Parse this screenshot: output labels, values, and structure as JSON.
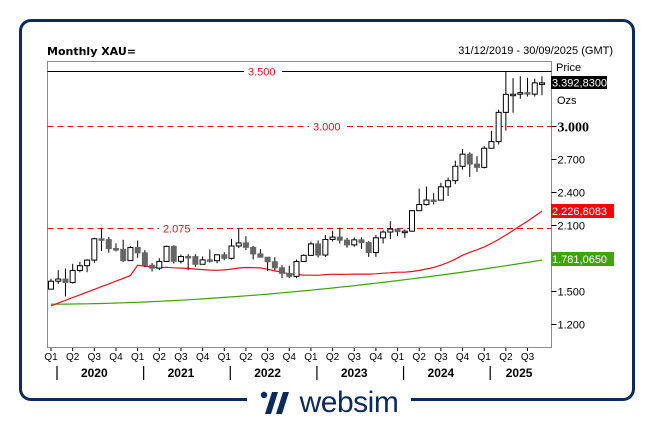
{
  "header": {
    "title": "Monthly XAU=",
    "date_range": "31/12/2019 - 30/09/2025 (GMT)"
  },
  "axis_right": {
    "price_label": "Price",
    "unit_label": "Ozs",
    "last_price": "3.392,8300",
    "ticks": [
      "3.000",
      "2.700",
      "2.400",
      "2.100",
      "1.500",
      "1.200"
    ],
    "ma_red_value": "2.226,8083",
    "ma_green_value": "1.781,0650"
  },
  "levels": [
    {
      "label": "3.500",
      "value": 3500,
      "color": "#000000",
      "style": "solid"
    },
    {
      "label": "3.000",
      "value": 3000,
      "color": "#e0141e",
      "style": "dashed"
    },
    {
      "label": "2.075",
      "value": 2075,
      "color": "#e0141e",
      "style": "dashed"
    }
  ],
  "x_axis": {
    "quarters": [
      "Q1",
      "Q2",
      "Q3",
      "Q4",
      "Q1",
      "Q2",
      "Q3",
      "Q4",
      "Q1",
      "Q2",
      "Q3",
      "Q4",
      "Q1",
      "Q2",
      "Q3",
      "Q4",
      "Q1",
      "Q2",
      "Q3",
      "Q4",
      "Q1",
      "Q2",
      "Q3"
    ],
    "years": [
      "2020",
      "2021",
      "2022",
      "2023",
      "2024",
      "2025"
    ]
  },
  "colors": {
    "frame": "#0d2b5a",
    "ma_red": "#e0141e",
    "ma_green": "#3fa40a",
    "bear_fill": "#666666",
    "last_price_bg": "#000000"
  },
  "branding": {
    "logo_text": "websim"
  },
  "chart_data": {
    "type": "candlestick",
    "title": "Monthly XAU=",
    "subtitle": "31/12/2019 - 30/09/2025 (GMT)",
    "ylabel": "Price (Ozs)",
    "ylim": [
      1100,
      3600
    ],
    "y_ticks": [
      1200,
      1500,
      2100,
      2400,
      2700,
      3000
    ],
    "grid": false,
    "horizontal_lines": [
      3500,
      3000,
      2075
    ],
    "x": [
      "2020-01",
      "2020-02",
      "2020-03",
      "2020-04",
      "2020-05",
      "2020-06",
      "2020-07",
      "2020-08",
      "2020-09",
      "2020-10",
      "2020-11",
      "2020-12",
      "2021-01",
      "2021-02",
      "2021-03",
      "2021-04",
      "2021-05",
      "2021-06",
      "2021-07",
      "2021-08",
      "2021-09",
      "2021-10",
      "2021-11",
      "2021-12",
      "2022-01",
      "2022-02",
      "2022-03",
      "2022-04",
      "2022-05",
      "2022-06",
      "2022-07",
      "2022-08",
      "2022-09",
      "2022-10",
      "2022-11",
      "2022-12",
      "2023-01",
      "2023-02",
      "2023-03",
      "2023-04",
      "2023-05",
      "2023-06",
      "2023-07",
      "2023-08",
      "2023-09",
      "2023-10",
      "2023-11",
      "2023-12",
      "2024-01",
      "2024-02",
      "2024-03",
      "2024-04",
      "2024-05",
      "2024-06",
      "2024-07",
      "2024-08",
      "2024-09",
      "2024-10",
      "2024-11",
      "2024-12",
      "2025-01",
      "2025-02",
      "2025-03",
      "2025-04",
      "2025-05",
      "2025-06",
      "2025-07",
      "2025-08",
      "2025-09"
    ],
    "ohlc": [
      [
        1517,
        1611,
        1517,
        1589
      ],
      [
        1589,
        1689,
        1563,
        1609
      ],
      [
        1609,
        1704,
        1451,
        1577
      ],
      [
        1577,
        1747,
        1568,
        1686
      ],
      [
        1686,
        1765,
        1670,
        1730
      ],
      [
        1730,
        1789,
        1671,
        1781
      ],
      [
        1781,
        1984,
        1757,
        1975
      ],
      [
        1975,
        2075,
        1863,
        1967
      ],
      [
        1967,
        1992,
        1848,
        1886
      ],
      [
        1886,
        1933,
        1860,
        1879
      ],
      [
        1879,
        1966,
        1764,
        1776
      ],
      [
        1776,
        1906,
        1776,
        1895
      ],
      [
        1895,
        1959,
        1802,
        1847
      ],
      [
        1847,
        1871,
        1717,
        1734
      ],
      [
        1734,
        1755,
        1677,
        1708
      ],
      [
        1708,
        1798,
        1690,
        1769
      ],
      [
        1769,
        1913,
        1765,
        1906
      ],
      [
        1906,
        1916,
        1750,
        1770
      ],
      [
        1770,
        1832,
        1750,
        1814
      ],
      [
        1814,
        1834,
        1688,
        1813
      ],
      [
        1813,
        1834,
        1721,
        1743
      ],
      [
        1743,
        1814,
        1746,
        1783
      ],
      [
        1783,
        1877,
        1758,
        1775
      ],
      [
        1775,
        1832,
        1753,
        1829
      ],
      [
        1829,
        1853,
        1780,
        1797
      ],
      [
        1797,
        1974,
        1786,
        1909
      ],
      [
        1909,
        2070,
        1890,
        1937
      ],
      [
        1937,
        1998,
        1872,
        1897
      ],
      [
        1897,
        1910,
        1786,
        1837
      ],
      [
        1837,
        1880,
        1805,
        1807
      ],
      [
        1807,
        1789,
        1681,
        1766
      ],
      [
        1766,
        1807,
        1688,
        1711
      ],
      [
        1711,
        1735,
        1615,
        1660
      ],
      [
        1660,
        1730,
        1617,
        1633
      ],
      [
        1633,
        1786,
        1616,
        1768
      ],
      [
        1768,
        1833,
        1765,
        1824
      ],
      [
        1824,
        1949,
        1823,
        1928
      ],
      [
        1928,
        1960,
        1805,
        1827
      ],
      [
        1827,
        2009,
        1810,
        1969
      ],
      [
        1969,
        2048,
        1950,
        1990
      ],
      [
        1990,
        2077,
        1932,
        1962
      ],
      [
        1962,
        1983,
        1893,
        1919
      ],
      [
        1919,
        1987,
        1903,
        1965
      ],
      [
        1965,
        1987,
        1884,
        1940
      ],
      [
        1940,
        1953,
        1810,
        1849
      ],
      [
        1849,
        2009,
        1810,
        1983
      ],
      [
        1983,
        2052,
        1932,
        2036
      ],
      [
        2036,
        2135,
        1973,
        2063
      ],
      [
        2063,
        2065,
        2001,
        2040
      ],
      [
        2040,
        2060,
        1984,
        2044
      ],
      [
        2044,
        2236,
        2039,
        2230
      ],
      [
        2230,
        2432,
        2229,
        2286
      ],
      [
        2286,
        2450,
        2277,
        2327
      ],
      [
        2327,
        2388,
        2286,
        2326
      ],
      [
        2326,
        2484,
        2353,
        2447
      ],
      [
        2447,
        2531,
        2364,
        2503
      ],
      [
        2503,
        2685,
        2472,
        2634
      ],
      [
        2634,
        2790,
        2604,
        2744
      ],
      [
        2744,
        2761,
        2537,
        2654
      ],
      [
        2654,
        2726,
        2583,
        2624
      ],
      [
        2624,
        2817,
        2614,
        2798
      ],
      [
        2798,
        2956,
        2833,
        2858
      ],
      [
        2858,
        3148,
        2833,
        3124
      ],
      [
        3124,
        3500,
        2957,
        3288
      ],
      [
        3288,
        3435,
        3121,
        3289
      ],
      [
        3289,
        3452,
        3248,
        3303
      ],
      [
        3303,
        3439,
        3268,
        3290
      ],
      [
        3290,
        3430,
        3268,
        3392
      ],
      [
        3392,
        3452,
        3280,
        3392
      ]
    ],
    "series": [
      {
        "name": "MA (red)",
        "color": "#e0141e",
        "last_value": 2226.8083
      },
      {
        "name": "MA (green)",
        "color": "#3fa40a",
        "last_value": 1781.065
      }
    ],
    "last_price": 3392.83
  }
}
